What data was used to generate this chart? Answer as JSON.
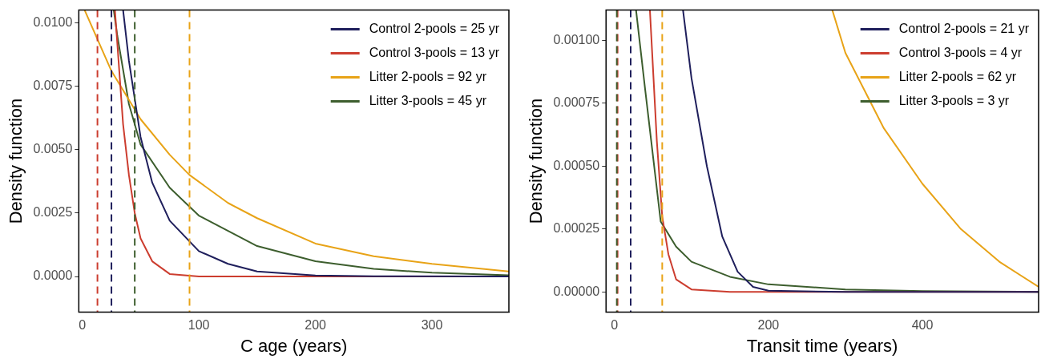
{
  "chart_data": [
    {
      "type": "line",
      "xlabel": "C age (years)",
      "ylabel": "Density function",
      "xlim": [
        -3,
        366
      ],
      "ylim": [
        -0.0014,
        0.0105
      ],
      "xticks": [
        0,
        100,
        200,
        300
      ],
      "yticks": [
        {
          "value": 0,
          "label": "0.0000"
        },
        {
          "value": 0.0025,
          "label": "0.0025"
        },
        {
          "value": 0.005,
          "label": "0.0050"
        },
        {
          "value": 0.0075,
          "label": "0.0075"
        },
        {
          "value": 0.01,
          "label": "0.0100"
        }
      ],
      "grid": false,
      "legend": "top right",
      "marker": "none",
      "line_style": "solid",
      "series": [
        {
          "name": "Control 2-pools = 25 yr",
          "color": "#1f1f5c",
          "x": [
            35,
            40,
            50,
            60,
            75,
            100,
            125,
            150,
            200,
            250,
            366
          ],
          "values": [
            0.0105,
            0.0085,
            0.0055,
            0.0037,
            0.0022,
            0.001,
            0.0005,
            0.0002,
            4e-05,
            1e-05,
            0
          ]
        },
        {
          "name": "Control 3-pools = 13 yr",
          "color": "#cc3d2f",
          "x": [
            28,
            35,
            40,
            45,
            50,
            60,
            75,
            100,
            200,
            366
          ],
          "values": [
            0.0105,
            0.006,
            0.004,
            0.0025,
            0.0015,
            0.0006,
            0.0001,
            0,
            0,
            0
          ]
        },
        {
          "name": "Litter 2-pools = 92 yr",
          "color": "#e8a317",
          "x": [
            2,
            25,
            50,
            75,
            92,
            125,
            150,
            200,
            250,
            300,
            366
          ],
          "values": [
            0.0105,
            0.0081,
            0.0062,
            0.0048,
            0.004,
            0.0029,
            0.0023,
            0.0013,
            0.0008,
            0.0005,
            0.0002
          ]
        },
        {
          "name": "Litter 3-pools = 45 yr",
          "color": "#3d5e2e",
          "x": [
            27,
            30,
            40,
            50,
            75,
            100,
            150,
            200,
            250,
            300,
            366
          ],
          "values": [
            0.0105,
            0.0095,
            0.0068,
            0.0052,
            0.0035,
            0.0024,
            0.0012,
            0.0006,
            0.0003,
            0.00015,
            5e-05
          ]
        }
      ],
      "ref_lines": [
        {
          "axis": "x",
          "value": 25,
          "color": "#1f1f5c",
          "line_style": "dashed"
        },
        {
          "axis": "x",
          "value": 13,
          "color": "#cc3d2f",
          "line_style": "dashed"
        },
        {
          "axis": "x",
          "value": 92,
          "color": "#e8a317",
          "line_style": "dashed"
        },
        {
          "axis": "x",
          "value": 45,
          "color": "#3d5e2e",
          "line_style": "dashed"
        }
      ]
    },
    {
      "type": "line",
      "xlabel": "Transit time (years)",
      "ylabel": "Density function",
      "xlim": [
        -11,
        551
      ],
      "ylim": [
        -8e-05,
        0.00112
      ],
      "xticks": [
        0,
        200,
        400
      ],
      "yticks": [
        {
          "value": 0,
          "label": "0.00000"
        },
        {
          "value": 0.00025,
          "label": "0.00025"
        },
        {
          "value": 0.0005,
          "label": "0.00050"
        },
        {
          "value": 0.00075,
          "label": "0.00075"
        },
        {
          "value": 0.001,
          "label": "0.00100"
        }
      ],
      "grid": false,
      "legend": "top right",
      "marker": "none",
      "line_style": "solid",
      "series": [
        {
          "name": "Control 2-pools = 21 yr",
          "color": "#1f1f5c",
          "x": [
            89,
            100,
            120,
            140,
            160,
            180,
            200,
            300,
            551
          ],
          "values": [
            0.00112,
            0.00085,
            0.0005,
            0.00022,
            8e-05,
            2e-05,
            5e-06,
            0,
            0
          ]
        },
        {
          "name": "Control 3-pools = 4 yr",
          "color": "#cc3d2f",
          "x": [
            46,
            55,
            62,
            70,
            80,
            100,
            150,
            551
          ],
          "values": [
            0.00112,
            0.0006,
            0.0003,
            0.00015,
            5e-05,
            1e-05,
            0,
            0
          ]
        },
        {
          "name": "Litter 2-pools = 62 yr",
          "color": "#e8a317",
          "x": [
            283,
            300,
            350,
            400,
            450,
            500,
            551
          ],
          "values": [
            0.00112,
            0.00095,
            0.00065,
            0.00043,
            0.00025,
            0.00012,
            2e-05
          ]
        },
        {
          "name": "Litter 3-pools = 3 yr",
          "color": "#3d5e2e",
          "x": [
            28,
            40,
            60,
            80,
            100,
            150,
            200,
            300,
            400,
            551
          ],
          "values": [
            0.00112,
            0.0008,
            0.00028,
            0.00018,
            0.00012,
            6e-05,
            3e-05,
            1e-05,
            3e-06,
            0
          ]
        }
      ],
      "ref_lines": [
        {
          "axis": "x",
          "value": 21,
          "color": "#1f1f5c",
          "line_style": "dashed"
        },
        {
          "axis": "x",
          "value": 4,
          "color": "#cc3d2f",
          "line_style": "dashed"
        },
        {
          "axis": "x",
          "value": 62,
          "color": "#e8a317",
          "line_style": "dashed"
        },
        {
          "axis": "x",
          "value": 3,
          "color": "#3d5e2e",
          "line_style": "dashed"
        }
      ]
    }
  ]
}
